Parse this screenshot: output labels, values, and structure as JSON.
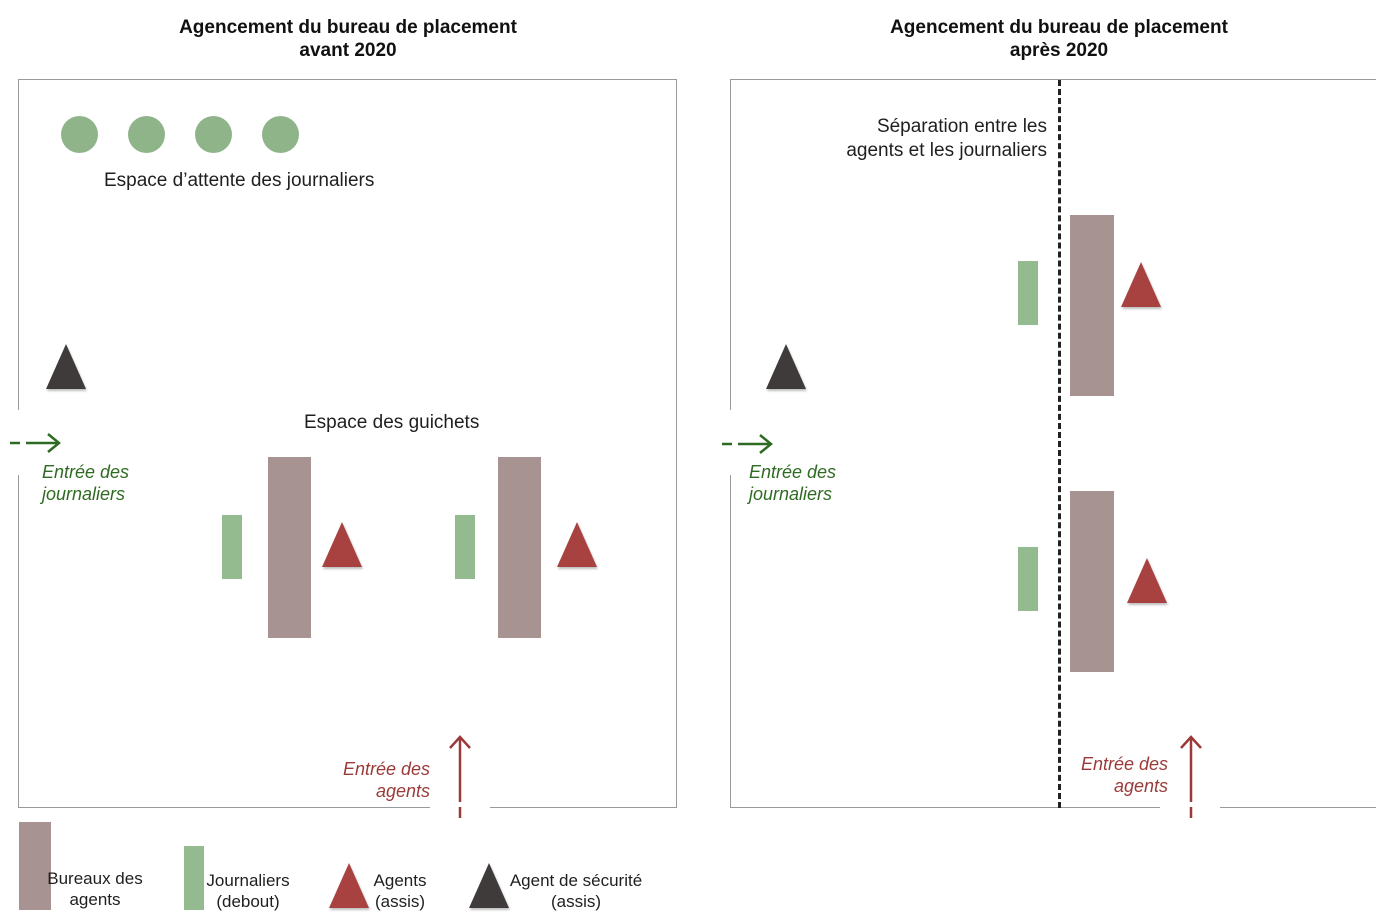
{
  "left_panel": {
    "title_line1": "Agencement du bureau de placement",
    "title_line2": "avant 2020",
    "waiting_label": "Espace d’attente des journaliers",
    "counters_label": "Espace des guichets",
    "entry_workers_line1": "Entrée des",
    "entry_workers_line2": "journaliers",
    "entry_agents_line1": "Entrée des",
    "entry_agents_line2": "agents"
  },
  "right_panel": {
    "title_line1": "Agencement du bureau de placement",
    "title_line2": "après 2020",
    "separation_line1": "Séparation entre les",
    "separation_line2": "agents et les journaliers",
    "entry_workers_line1": "Entrée des",
    "entry_workers_line2": "journaliers",
    "entry_agents_line1": "Entrée des",
    "entry_agents_line2": "agents"
  },
  "legend": {
    "desks_line1": "Bureaux des",
    "desks_line2": "agents",
    "workers_line1": "Journaliers",
    "workers_line2": "(debout)",
    "agents_line1": "Agents",
    "agents_line2": "(assis)",
    "security_line1": "Agent de sécurité",
    "security_line2": "(assis)"
  },
  "colors": {
    "desk": "#a69392",
    "day_laborer": "#93bb8f",
    "agent": "#a84240",
    "security_agent": "#403b3b",
    "workers_entry": "#2f6b22",
    "agents_entry": "#9a3b3a"
  }
}
